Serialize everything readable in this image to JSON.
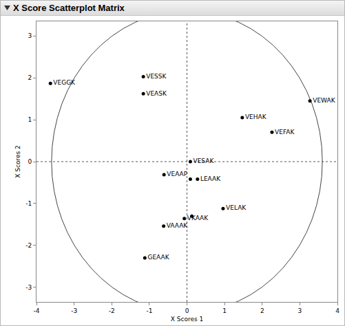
{
  "chart_data": {
    "type": "scatter",
    "title": "X Score Scatterplot Matrix",
    "x_label": "X Scores 1",
    "y_label": "X Scores 2",
    "labels": [
      "VEGGK",
      "VESSK",
      "VEASK",
      "VEWAK",
      "VEHAK",
      "VEFAK",
      "VESAK",
      "VEAAP",
      "LEAAK",
      null,
      "VELAK",
      "VKAAK",
      null,
      "VAAAK",
      "GEAAK"
    ],
    "x": [
      -3.63,
      -1.16,
      -1.16,
      3.27,
      1.47,
      2.26,
      0.09,
      -0.61,
      0.28,
      0.09,
      0.96,
      -0.07,
      0.13,
      -0.62,
      -1.12
    ],
    "y": [
      1.87,
      2.03,
      1.62,
      1.45,
      1.05,
      0.7,
      0.0,
      -0.31,
      -0.42,
      -0.42,
      -1.12,
      -1.36,
      -1.3,
      -1.54,
      -2.3
    ],
    "color": "#000000",
    "marker": "circle",
    "xlim": [
      -4,
      4
    ],
    "ylim": [
      -3.35,
      3.35
    ],
    "xticks": [
      -4,
      -3,
      -2,
      -1,
      0,
      1,
      2,
      3,
      4
    ],
    "yticks": [
      -3,
      -2,
      -1,
      0,
      1,
      2,
      3
    ],
    "grid": false,
    "reference_circle_radius": 3.6,
    "reference_lines": {
      "x": 0,
      "y": 0
    }
  }
}
